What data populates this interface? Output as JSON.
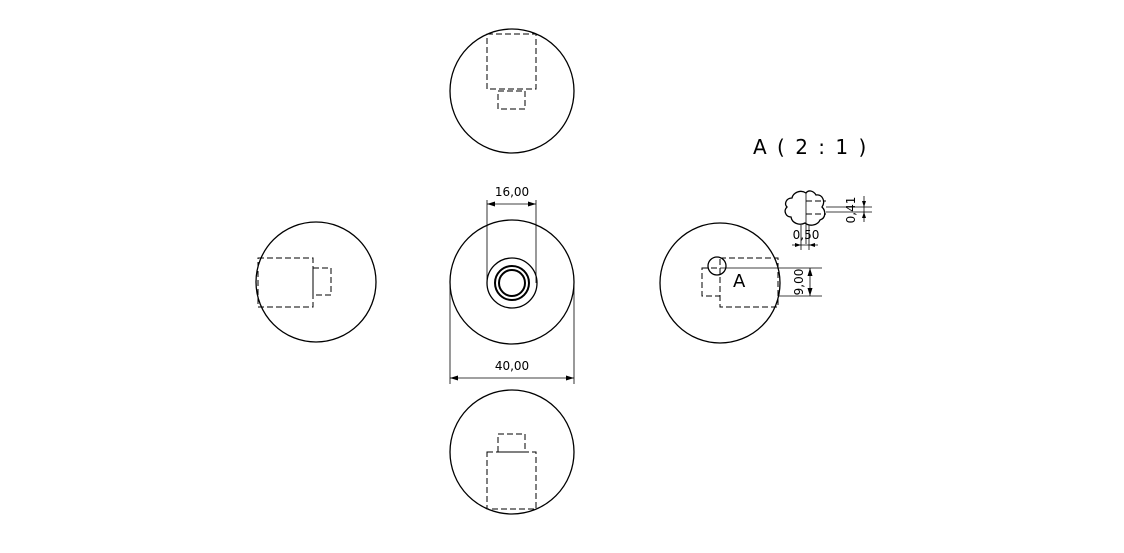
{
  "dimensions": {
    "inner_diameter": "16,00",
    "outer_diameter": "40,00",
    "slot_depth": "9,00",
    "detail_width": "0,50",
    "detail_height": "0,41"
  },
  "detail": {
    "title": "A ( 2 : 1 )",
    "marker": "A"
  }
}
